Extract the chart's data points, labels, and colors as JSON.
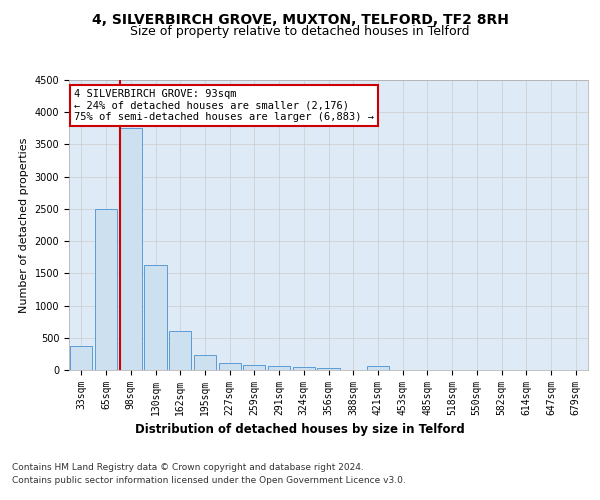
{
  "title1": "4, SILVERBIRCH GROVE, MUXTON, TELFORD, TF2 8RH",
  "title2": "Size of property relative to detached houses in Telford",
  "xlabel": "Distribution of detached houses by size in Telford",
  "ylabel": "Number of detached properties",
  "categories": [
    "33sqm",
    "65sqm",
    "98sqm",
    "130sqm",
    "162sqm",
    "195sqm",
    "227sqm",
    "259sqm",
    "291sqm",
    "324sqm",
    "356sqm",
    "388sqm",
    "421sqm",
    "453sqm",
    "485sqm",
    "518sqm",
    "550sqm",
    "582sqm",
    "614sqm",
    "647sqm",
    "679sqm"
  ],
  "values": [
    375,
    2500,
    3750,
    1625,
    600,
    230,
    110,
    80,
    55,
    40,
    35,
    0,
    55,
    0,
    0,
    0,
    0,
    0,
    0,
    0,
    0
  ],
  "bar_color": "#cce0f0",
  "bar_edge_color": "#5b9bd5",
  "annotation_title": "4 SILVERBIRCH GROVE: 93sqm",
  "annotation_line1": "← 24% of detached houses are smaller (2,176)",
  "annotation_line2": "75% of semi-detached houses are larger (6,883) →",
  "annotation_box_color": "#ffffff",
  "annotation_box_edge": "#cc0000",
  "red_line_color": "#cc0000",
  "grid_color": "#cccccc",
  "background_color": "#deeaf5",
  "ylim": [
    0,
    4500
  ],
  "yticks": [
    0,
    500,
    1000,
    1500,
    2000,
    2500,
    3000,
    3500,
    4000,
    4500
  ],
  "footer1": "Contains HM Land Registry data © Crown copyright and database right 2024.",
  "footer2": "Contains public sector information licensed under the Open Government Licence v3.0.",
  "title1_fontsize": 10,
  "title2_fontsize": 9,
  "xlabel_fontsize": 8.5,
  "ylabel_fontsize": 8,
  "tick_fontsize": 7,
  "footer_fontsize": 6.5,
  "red_line_bar_index": 2
}
